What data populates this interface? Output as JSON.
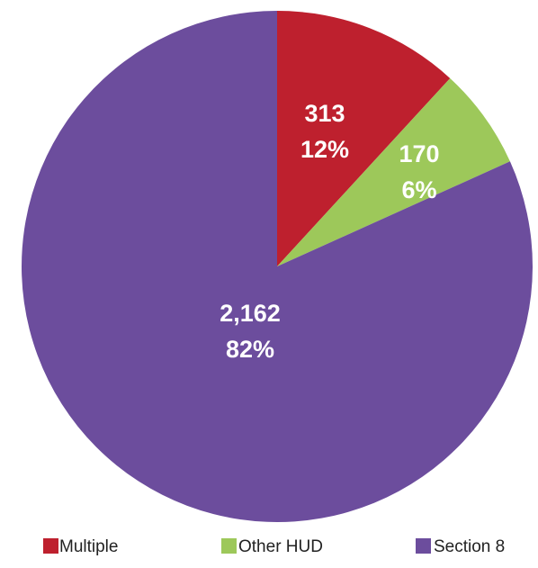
{
  "chart_data": {
    "type": "pie",
    "categories": [
      "Multiple",
      "Other HUD",
      "Section 8"
    ],
    "values": [
      313,
      170,
      2162
    ],
    "data_labels": [
      {
        "value_text": "313",
        "percent_text": "12%"
      },
      {
        "value_text": "170",
        "percent_text": "6%"
      },
      {
        "value_text": "2,162",
        "percent_text": "82%"
      }
    ],
    "colors": [
      "#BE202E",
      "#9DC85A",
      "#6C4D9D"
    ],
    "legend_position": "bottom",
    "start_angle": "top",
    "direction": "clockwise"
  },
  "legend": {
    "items": [
      {
        "label": "Multiple",
        "color": "#BE202E"
      },
      {
        "label": "Other HUD",
        "color": "#9DC85A"
      },
      {
        "label": "Section 8",
        "color": "#6C4D9D"
      }
    ]
  }
}
